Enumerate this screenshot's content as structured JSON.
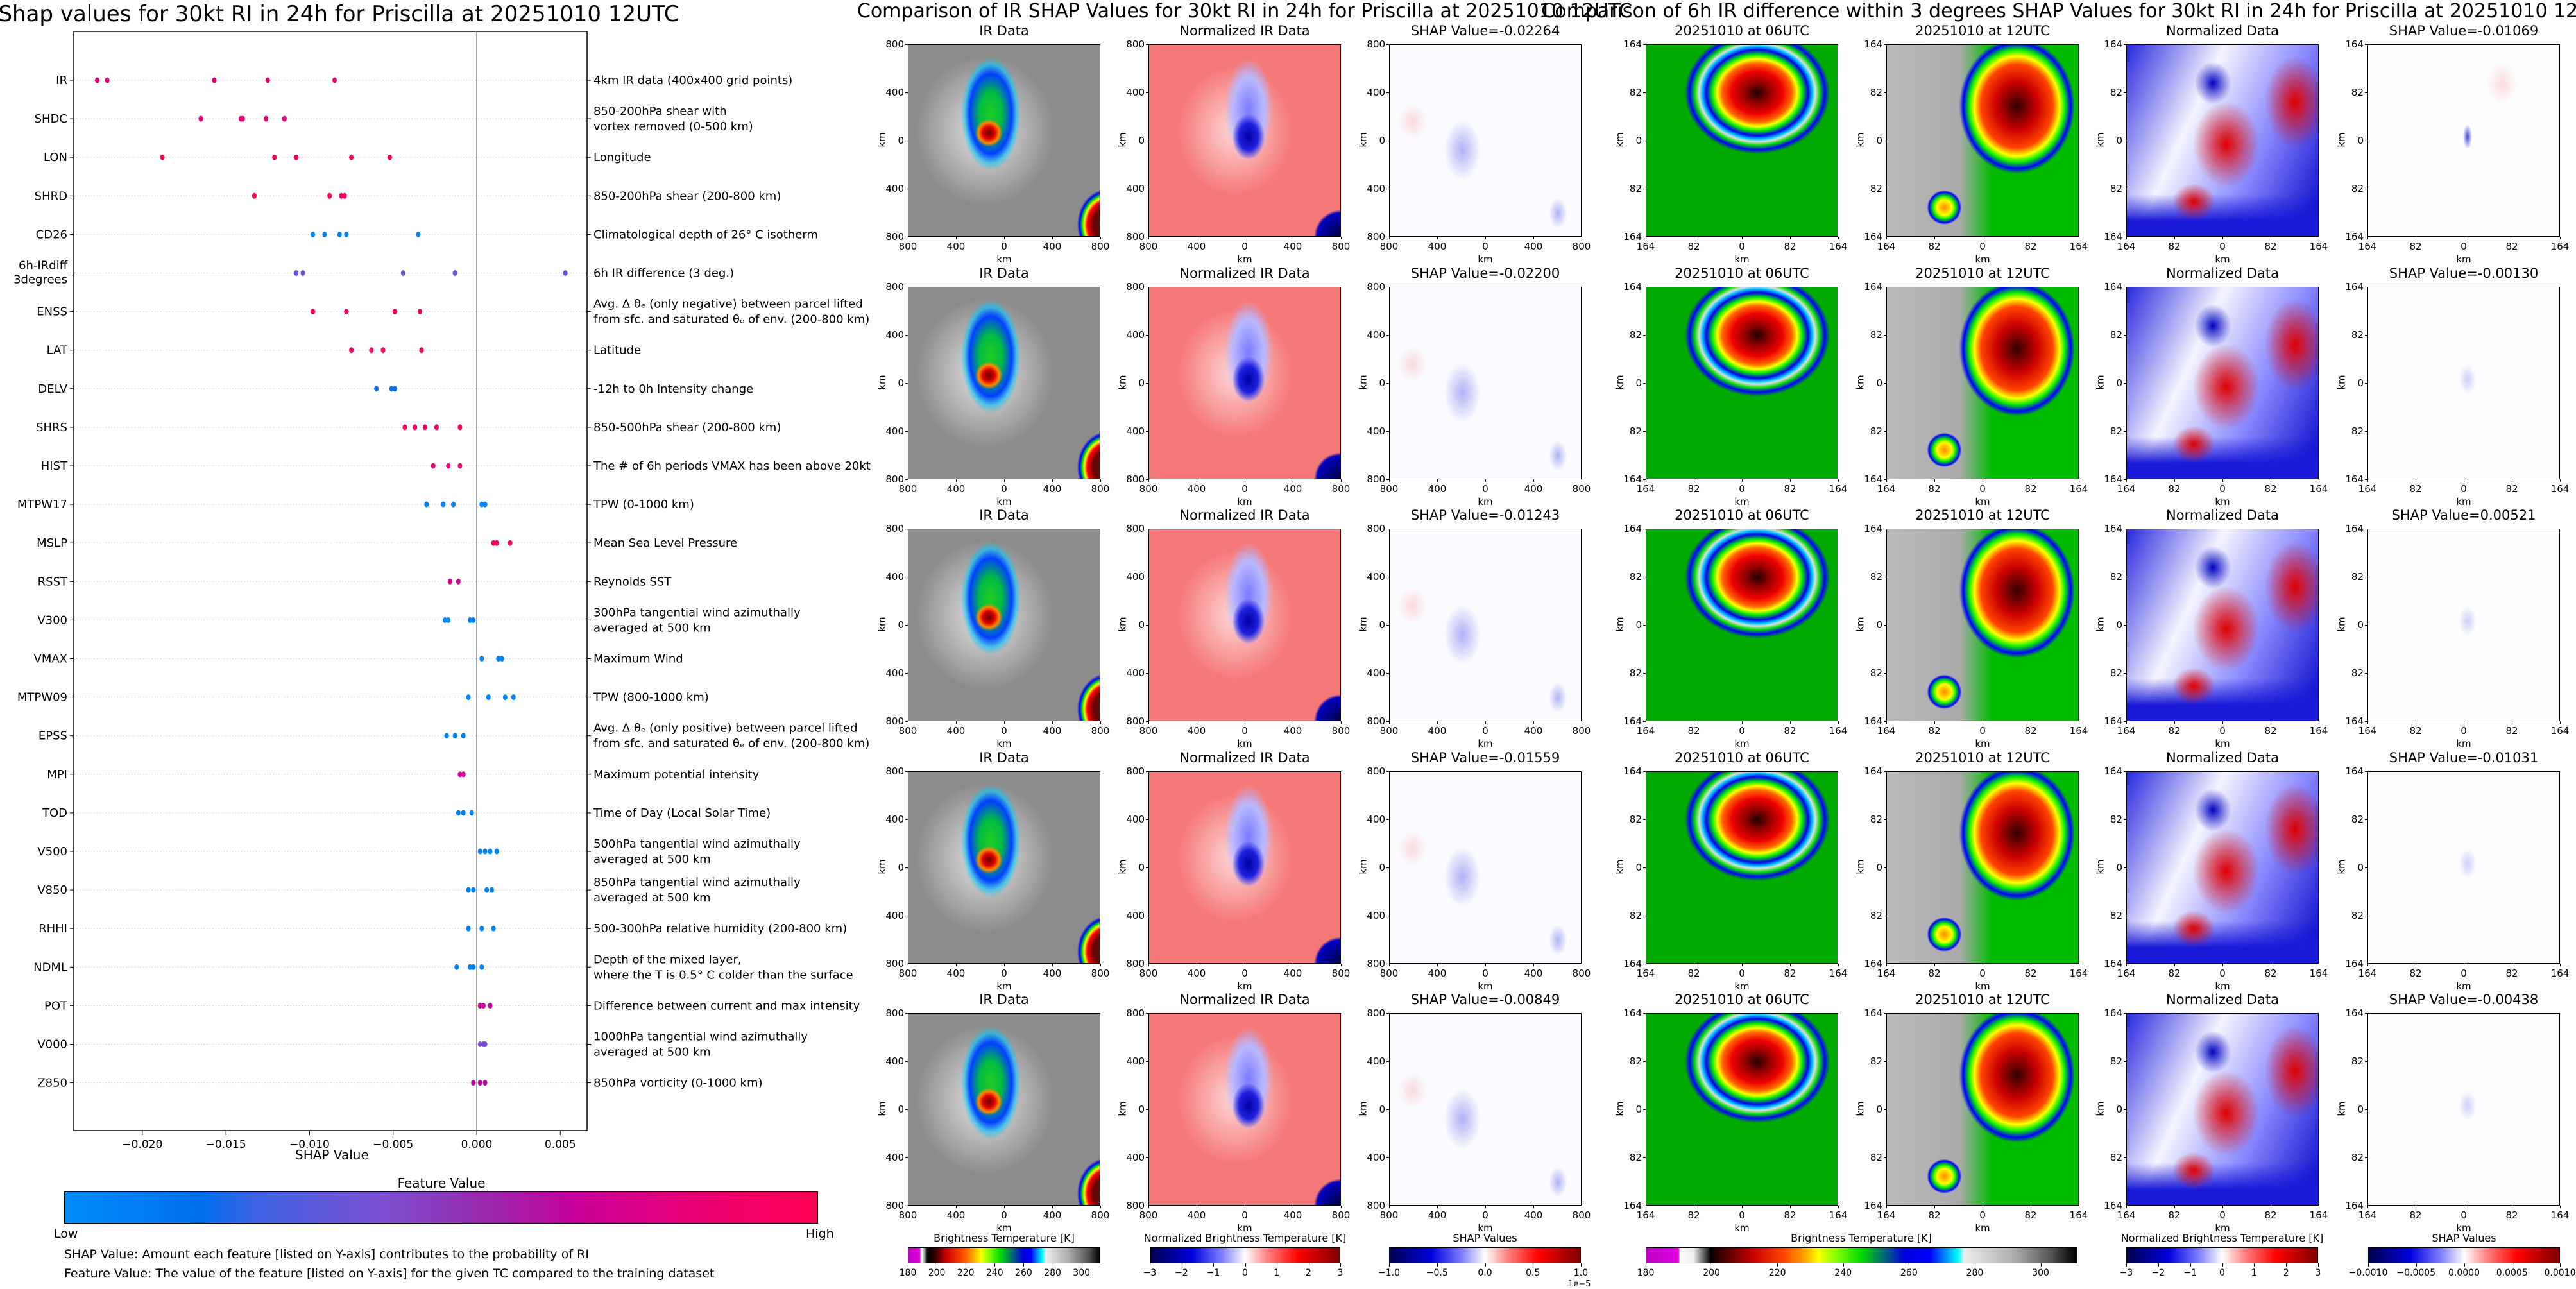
{
  "shap_summary": {
    "title": "Shap values for 30kt RI in 24h for Priscilla at 20251010 12UTC",
    "xlabel": "SHAP Value",
    "colorbar_label": "Feature Value",
    "colorbar_low": "Low",
    "colorbar_high": "High",
    "footnote_1": "SHAP Value: Amount each feature [listed on Y-axis] contributes to the probability of RI",
    "footnote_2": "Feature Value: The value of the feature [listed on Y-axis] for the given TC compared to the training dataset",
    "colors": {
      "low": "#008bfb",
      "high": "#ff0052"
    }
  },
  "ir_section": {
    "title": "Comparison of IR SHAP Values for 30kt RI in 24h for Priscilla at 20251010 12UTC",
    "panel_titles": [
      "IR Data",
      "Normalized IR Data"
    ],
    "shap_titles": [
      "SHAP Value=-0.02264",
      "SHAP Value=-0.02200",
      "SHAP Value=-0.01243",
      "SHAP Value=-0.01559",
      "SHAP Value=-0.00849"
    ],
    "ticks": [
      "800",
      "400",
      "0",
      "400",
      "800"
    ],
    "axis_label": "km",
    "colorbars": [
      {
        "label": "Brightness Temperature [K]",
        "ticks": [
          "180",
          "200",
          "220",
          "240",
          "260",
          "280",
          "300"
        ],
        "range": [
          180,
          313
        ]
      },
      {
        "label": "Normalized Brightness Temperature [K]",
        "ticks": [
          "−3",
          "−2",
          "−1",
          "0",
          "1",
          "2",
          "3"
        ],
        "range": [
          -3,
          3
        ]
      },
      {
        "label": "SHAP Values",
        "ticks": [
          "−1.0",
          "−0.5",
          "0.0",
          "0.5",
          "1.0"
        ],
        "range": [
          -1,
          1
        ],
        "offset": "1e−5"
      }
    ]
  },
  "irdiff_section": {
    "title": "Comparison of 6h IR difference within 3 degrees SHAP Values for 30kt RI in 24h for Priscilla at 20251010 12UTC",
    "panel_titles": [
      "20251010 at 06UTC",
      "20251010 at 12UTC",
      "Normalized Data"
    ],
    "shap_titles": [
      "SHAP Value=-0.01069",
      "SHAP Value=-0.00130",
      "SHAP Value=0.00521",
      "SHAP Value=-0.01031",
      "SHAP Value=-0.00438"
    ],
    "ticks": [
      "164",
      "82",
      "0",
      "82",
      "164"
    ],
    "axis_label": "km",
    "colorbars": [
      {
        "label": "Brightness Temperature [K]",
        "ticks": [
          "180",
          "200",
          "220",
          "240",
          "260",
          "280",
          "300"
        ],
        "range": [
          180,
          311
        ]
      },
      {
        "label": "Normalized Brightness Temperature [K]",
        "ticks": [
          "−3",
          "−2",
          "−1",
          "0",
          "1",
          "2",
          "3"
        ],
        "range": [
          -3,
          3
        ]
      },
      {
        "label": "SHAP Values",
        "ticks": [
          "−0.0010",
          "−0.0005",
          "0.0000",
          "0.0005",
          "0.0010"
        ],
        "range": [
          -0.001,
          0.001
        ]
      }
    ]
  },
  "chart_data": {
    "type": "scatter",
    "title": "Shap values for 30kt RI in 24h for Priscilla at 20251010 12UTC",
    "xlabel": "SHAP Value",
    "xlim": [
      -0.0241,
      0.0066
    ],
    "xticks": [
      "−0.020",
      "−0.015",
      "−0.010",
      "−0.005",
      "0.000",
      "0.005"
    ],
    "xtick_values": [
      -0.02,
      -0.015,
      -0.01,
      -0.005,
      0,
      0.005
    ],
    "grid": "horizontal dotted per feature",
    "features": [
      {
        "name": "IR",
        "desc": [
          "4km IR data (400x400 grid points)"
        ],
        "shap": [
          -0.0227,
          -0.0221,
          -0.0157,
          -0.0125,
          -0.0085
        ],
        "feature_value": 0.85
      },
      {
        "name": "SHDC",
        "desc": [
          "850-200hPa shear with",
          "vortex removed (0-500 km)"
        ],
        "shap": [
          -0.0165,
          -0.0141,
          -0.014,
          -0.0126,
          -0.0115
        ],
        "feature_value": 0.85
      },
      {
        "name": "LON",
        "desc": [
          "Longitude"
        ],
        "shap": [
          -0.0188,
          -0.0121,
          -0.0108,
          -0.0075,
          -0.0052
        ],
        "feature_value": 0.95
      },
      {
        "name": "SHRD",
        "desc": [
          "850-200hPa shear (200-800 km)"
        ],
        "shap": [
          -0.0133,
          -0.0088,
          -0.0081,
          -0.0079
        ],
        "feature_value": 0.95
      },
      {
        "name": "CD26",
        "desc": [
          "Climatological depth of 26° C isotherm"
        ],
        "shap": [
          -0.0098,
          -0.0091,
          -0.0082,
          -0.0078,
          -0.0035
        ],
        "feature_value": 0.05
      },
      {
        "name": "6h-IRdiff 3degrees",
        "desc": [
          "6h IR difference (3 deg.)"
        ],
        "shap": [
          -0.0108,
          -0.0104,
          -0.0044,
          -0.0013,
          0.0053
        ],
        "feature_value": 0.42
      },
      {
        "name": "ENSS",
        "desc": [
          "Avg. Δ θₑ (only negative) between parcel lifted",
          "from sfc. and saturated θₑ of env. (200-800 km)"
        ],
        "shap": [
          -0.0098,
          -0.0078,
          -0.0049,
          -0.0034
        ],
        "feature_value": 0.95
      },
      {
        "name": "LAT",
        "desc": [
          "Latitude"
        ],
        "shap": [
          -0.0075,
          -0.0063,
          -0.0056,
          -0.0033
        ],
        "feature_value": 0.95
      },
      {
        "name": "DELV",
        "desc": [
          "-12h to 0h Intensity change"
        ],
        "shap": [
          -0.006,
          -0.0051,
          -0.0049
        ],
        "feature_value": 0.22
      },
      {
        "name": "SHRS",
        "desc": [
          "850-500hPa shear (200-800 km)"
        ],
        "shap": [
          -0.0043,
          -0.0037,
          -0.0031,
          -0.0024,
          -0.001
        ],
        "feature_value": 0.95
      },
      {
        "name": "HIST",
        "desc": [
          "The # of 6h periods VMAX has been above 20kt"
        ],
        "shap": [
          -0.0026,
          -0.0017,
          -0.001
        ],
        "feature_value": 0.85
      },
      {
        "name": "MTPW17",
        "desc": [
          "TPW (0-1000 km)"
        ],
        "shap": [
          -0.003,
          -0.002,
          -0.0014,
          0.0003,
          0.0005
        ],
        "feature_value": 0.05
      },
      {
        "name": "MSLP",
        "desc": [
          "Mean Sea Level Pressure"
        ],
        "shap": [
          0.001,
          0.0012,
          0.002
        ],
        "feature_value": 0.95
      },
      {
        "name": "RSST",
        "desc": [
          "Reynolds SST"
        ],
        "shap": [
          -0.0016,
          -0.0011
        ],
        "feature_value": 0.75
      },
      {
        "name": "V300",
        "desc": [
          "300hPa tangential wind azimuthally",
          "averaged at 500 km"
        ],
        "shap": [
          -0.0019,
          -0.0017,
          -0.0004,
          -0.0002
        ],
        "feature_value": 0.05
      },
      {
        "name": "VMAX",
        "desc": [
          "Maximum Wind"
        ],
        "shap": [
          0.0003,
          0.0013,
          0.0015
        ],
        "feature_value": 0.05
      },
      {
        "name": "MTPW09",
        "desc": [
          "TPW (800-1000 km)"
        ],
        "shap": [
          -0.0005,
          0.0007,
          0.0017,
          0.0022
        ],
        "feature_value": 0.05
      },
      {
        "name": "EPSS",
        "desc": [
          "Avg. Δ θₑ (only positive) between parcel lifted",
          "from sfc. and saturated θₑ of env. (200-800 km)"
        ],
        "shap": [
          -0.0018,
          -0.0013,
          -0.0008
        ],
        "feature_value": 0.05
      },
      {
        "name": "MPI",
        "desc": [
          "Maximum potential intensity"
        ],
        "shap": [
          -0.001,
          -0.0008
        ],
        "feature_value": 0.72
      },
      {
        "name": "TOD",
        "desc": [
          "Time of Day (Local Solar Time)"
        ],
        "shap": [
          -0.0011,
          -0.0008,
          -0.0003
        ],
        "feature_value": 0.05
      },
      {
        "name": "V500",
        "desc": [
          "500hPa tangential wind azimuthally",
          "averaged at 500 km"
        ],
        "shap": [
          0.0002,
          0.0005,
          0.0008,
          0.0012
        ],
        "feature_value": 0.05
      },
      {
        "name": "V850",
        "desc": [
          "850hPa tangential wind azimuthally",
          "averaged at 500 km"
        ],
        "shap": [
          -0.0005,
          -0.0002,
          0.0006,
          0.0009
        ],
        "feature_value": 0.05
      },
      {
        "name": "RHHI",
        "desc": [
          "500-300hPa relative humidity (200-800 km)"
        ],
        "shap": [
          -0.0005,
          0.0003,
          0.001
        ],
        "feature_value": 0.05
      },
      {
        "name": "NDML",
        "desc": [
          "Depth of the mixed layer,",
          "where the T is 0.5° C colder than the surface"
        ],
        "shap": [
          -0.0012,
          -0.0004,
          -0.0002,
          0.0003
        ],
        "feature_value": 0.05
      },
      {
        "name": "POT",
        "desc": [
          "Difference between current and max intensity"
        ],
        "shap": [
          0.0002,
          0.0004,
          0.0008
        ],
        "feature_value": 0.72
      },
      {
        "name": "V000",
        "desc": [
          "1000hPa tangential wind azimuthally",
          "averaged at 500 km"
        ],
        "shap": [
          0.0002,
          0.0004,
          0.0005
        ],
        "feature_value": 0.45
      },
      {
        "name": "Z850",
        "desc": [
          "850hPa vorticity (0-1000 km)"
        ],
        "shap": [
          -0.0002,
          0.0002,
          0.0005
        ],
        "feature_value": 0.65
      }
    ]
  }
}
